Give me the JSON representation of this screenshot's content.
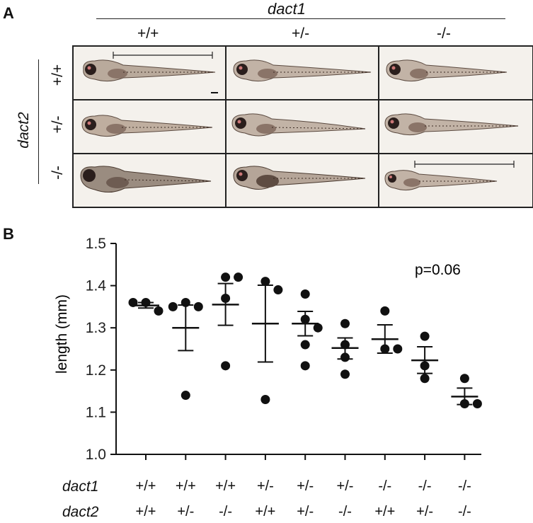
{
  "panel_a": {
    "letter": "A",
    "col_gene": "dact1",
    "row_gene": "dact2",
    "col_genotypes": [
      "+/+",
      "+/-",
      "-/-"
    ],
    "row_genotypes": [
      "+/+",
      "+/-",
      "-/-"
    ]
  },
  "panel_b": {
    "letter": "B",
    "p_value": "p=0.06",
    "row_gene_1": "dact1",
    "row_gene_2": "dact2",
    "dact1_genotypes": [
      "+/+",
      "+/+",
      "+/+",
      "+/-",
      "+/-",
      "+/-",
      "-/-",
      "-/-",
      "-/-"
    ],
    "dact2_genotypes": [
      "+/+",
      "+/-",
      "-/-",
      "+/+",
      "+/-",
      "-/-",
      "+/+",
      "+/-",
      "-/-"
    ]
  },
  "chart_data": {
    "type": "scatter",
    "ylabel": "length (mm)",
    "ylim": [
      1.0,
      1.5
    ],
    "yticks": [
      "1.0",
      "1.1",
      "1.2",
      "1.3",
      "1.4",
      "1.5"
    ],
    "groups": [
      {
        "points": [
          1.36,
          1.34,
          1.36
        ],
        "mean": 1.353,
        "sem_low": 1.347,
        "sem_high": 1.36
      },
      {
        "points": [
          1.36,
          1.35,
          1.35,
          1.14
        ],
        "mean": 1.3,
        "sem_low": 1.246,
        "sem_high": 1.354
      },
      {
        "points": [
          1.42,
          1.42,
          1.37,
          1.21
        ],
        "mean": 1.355,
        "sem_low": 1.306,
        "sem_high": 1.405
      },
      {
        "points": [
          1.41,
          1.39,
          1.13
        ],
        "mean": 1.31,
        "sem_low": 1.219,
        "sem_high": 1.401
      },
      {
        "points": [
          1.38,
          1.32,
          1.3,
          1.26,
          1.21
        ],
        "mean": 1.31,
        "sem_low": 1.281,
        "sem_high": 1.339
      },
      {
        "points": [
          1.31,
          1.26,
          1.23,
          1.19
        ],
        "mean": 1.252,
        "sem_low": 1.226,
        "sem_high": 1.276
      },
      {
        "points": [
          1.34,
          1.25,
          1.25
        ],
        "mean": 1.273,
        "sem_low": 1.24,
        "sem_high": 1.307
      },
      {
        "points": [
          1.28,
          1.21,
          1.18
        ],
        "mean": 1.223,
        "sem_low": 1.192,
        "sem_high": 1.255
      },
      {
        "points": [
          1.18,
          1.12,
          1.12
        ],
        "mean": 1.137,
        "sem_low": 1.118,
        "sem_high": 1.157
      }
    ]
  }
}
